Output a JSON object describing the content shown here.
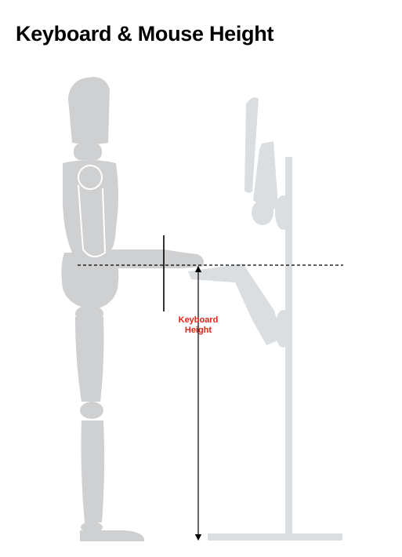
{
  "title": "Keyboard & Mouse Height",
  "measurement": {
    "label_line1": "Keyboard",
    "label_line2": "Height",
    "label_color": "#e2231a"
  },
  "colors": {
    "figure": "#cfd0d2",
    "workstation": "#dbdee1",
    "figure_outline": "#ffffff",
    "lines": "#000000"
  },
  "elements": {
    "figure": "wooden-mannequin-standing",
    "workstation": "standing-desk-stand-with-monitor-and-keyboard-tray",
    "reference_line": "dashed-elbow-height-line",
    "dimension_arrow": "double-headed-vertical-arrow"
  }
}
